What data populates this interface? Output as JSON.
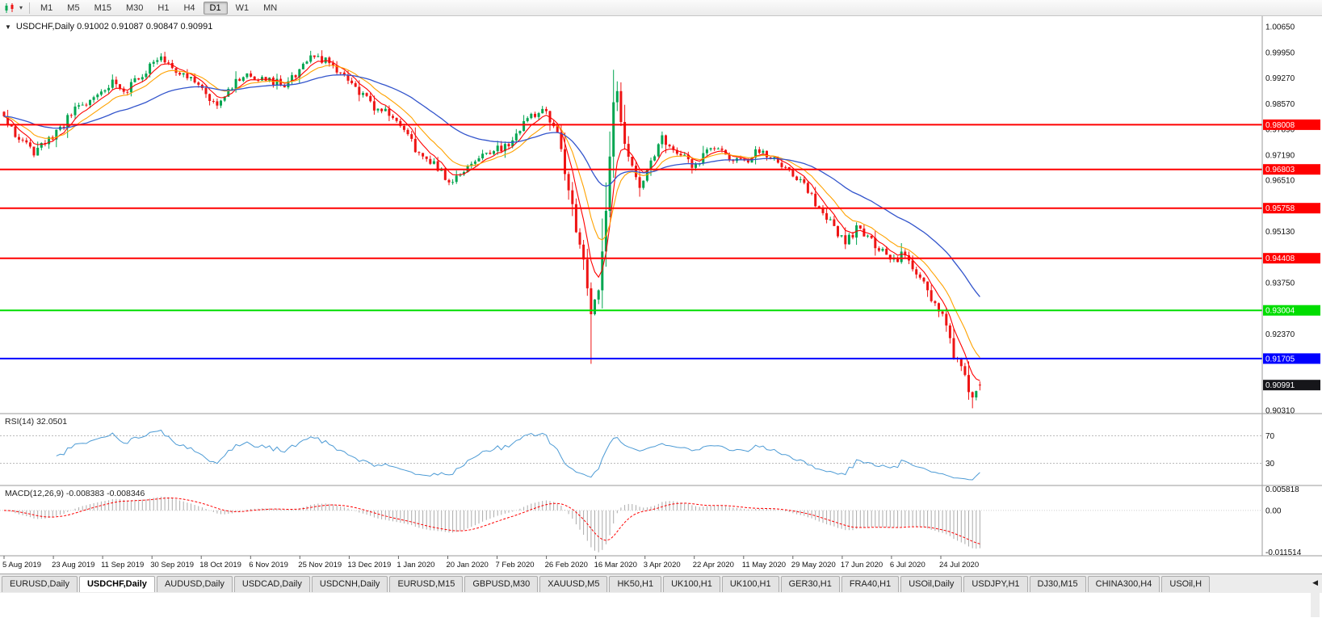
{
  "toolbar": {
    "timeframes": [
      "M1",
      "M5",
      "M15",
      "M30",
      "H1",
      "H4",
      "D1",
      "W1",
      "MN"
    ],
    "active_timeframe": "D1"
  },
  "chart": {
    "title": "USDCHF,Daily 0.91002 0.91087 0.90847 0.90991",
    "symbol": "USDCHF,Daily",
    "collapse_icon": "▼"
  },
  "chart_data": {
    "type": "candlestick",
    "title": "USDCHF,Daily",
    "ohlc": {
      "open": "0.91002",
      "high": "0.91087",
      "low": "0.90847",
      "close": "0.90991"
    },
    "colors": {
      "bull": "#00A550",
      "bear": "#EE1414"
    },
    "price_axis_range": {
      "max": 1.0065,
      "min": 0.9031
    },
    "price_axis_labels": [
      "1.00650",
      "0.99950",
      "0.99270",
      "0.98570",
      "0.97890",
      "0.97190",
      "0.96510",
      "0.95810",
      "0.95130",
      "0.94430",
      "0.93750",
      "0.93050",
      "0.92370",
      "0.91670",
      "0.90990",
      "0.90310"
    ],
    "horizontal_lines": [
      {
        "price": 0.98008,
        "label": "0.98008",
        "color": "#FF0000"
      },
      {
        "price": 0.96803,
        "label": "0.96803",
        "color": "#FF0000"
      },
      {
        "price": 0.95758,
        "label": "0.95758",
        "color": "#FF0000"
      },
      {
        "price": 0.94408,
        "label": "0.94408",
        "color": "#FF0000"
      },
      {
        "price": 0.93004,
        "label": "0.93004",
        "color": "#00DD00"
      },
      {
        "price": 0.91705,
        "label": "0.91705",
        "color": "#0000FF"
      }
    ],
    "current_price": {
      "price": 0.90991,
      "label": "0.90991",
      "badge_color": "#16161a"
    },
    "date_labels": [
      "5 Aug 2019",
      "23 Aug 2019",
      "11 Sep 2019",
      "30 Sep 2019",
      "18 Oct 2019",
      "6 Nov 2019",
      "25 Nov 2019",
      "13 Dec 2019",
      "1 Jan 2020",
      "20 Jan 2020",
      "7 Feb 2020",
      "26 Feb 2020",
      "16 Mar 2020",
      "3 Apr 2020",
      "22 Apr 2020",
      "11 May 2020",
      "29 May 2020",
      "17 Jun 2020",
      "6 Jul 2020",
      "24 Jul 2020"
    ],
    "candles": {
      "count": 262,
      "close_anchors": [
        [
          0,
          0.982
        ],
        [
          3,
          0.9772
        ],
        [
          8,
          0.9728
        ],
        [
          12,
          0.976
        ],
        [
          15,
          0.9792
        ],
        [
          19,
          0.984
        ],
        [
          24,
          0.9872
        ],
        [
          29,
          0.9916
        ],
        [
          33,
          0.9896
        ],
        [
          38,
          0.995
        ],
        [
          42,
          0.999
        ],
        [
          45,
          0.9958
        ],
        [
          49,
          0.993
        ],
        [
          53,
          0.989
        ],
        [
          57,
          0.9862
        ],
        [
          60,
          0.99
        ],
        [
          65,
          0.9936
        ],
        [
          70,
          0.9928
        ],
        [
          75,
          0.9906
        ],
        [
          79,
          0.9942
        ],
        [
          83,
          0.9988
        ],
        [
          87,
          0.9964
        ],
        [
          92,
          0.992
        ],
        [
          98,
          0.9856
        ],
        [
          103,
          0.983
        ],
        [
          107,
          0.9788
        ],
        [
          111,
          0.972
        ],
        [
          116,
          0.9688
        ],
        [
          119,
          0.9646
        ],
        [
          123,
          0.9682
        ],
        [
          129,
          0.9726
        ],
        [
          135,
          0.9742
        ],
        [
          140,
          0.9818
        ],
        [
          144,
          0.9846
        ],
        [
          148,
          0.9776
        ],
        [
          151,
          0.963
        ],
        [
          153,
          0.952
        ],
        [
          155,
          0.944
        ],
        [
          157,
          0.929
        ],
        [
          159,
          0.935
        ],
        [
          161,
          0.956
        ],
        [
          163,
          0.986
        ],
        [
          164,
          0.9882
        ],
        [
          166,
          0.9752
        ],
        [
          170,
          0.963
        ],
        [
          172,
          0.968
        ],
        [
          176,
          0.9766
        ],
        [
          180,
          0.973
        ],
        [
          185,
          0.9686
        ],
        [
          189,
          0.974
        ],
        [
          193,
          0.9718
        ],
        [
          198,
          0.97
        ],
        [
          202,
          0.973
        ],
        [
          206,
          0.9712
        ],
        [
          212,
          0.966
        ],
        [
          216,
          0.9606
        ],
        [
          219,
          0.9566
        ],
        [
          222,
          0.9526
        ],
        [
          225,
          0.9482
        ],
        [
          228,
          0.952
        ],
        [
          231,
          0.95
        ],
        [
          234,
          0.9468
        ],
        [
          238,
          0.9432
        ],
        [
          241,
          0.9455
        ],
        [
          244,
          0.9402
        ],
        [
          247,
          0.9352
        ],
        [
          251,
          0.9282
        ],
        [
          254,
          0.918
        ],
        [
          257,
          0.912
        ],
        [
          259,
          0.9058
        ],
        [
          261,
          0.90991
        ]
      ],
      "wick_extensions": [
        [
          157,
          -0.0105
        ],
        [
          164,
          0.0025
        ],
        [
          259,
          -0.0022
        ]
      ]
    },
    "moving_averages": [
      {
        "type": "ema",
        "period": 6,
        "color": "#FF0000",
        "width": 1.1
      },
      {
        "type": "ema",
        "period": 13,
        "color": "#FFA200",
        "width": 1.1
      },
      {
        "type": "ema",
        "period": 40,
        "color": "#3355CC",
        "width": 1.3
      }
    ],
    "rsi": {
      "label": "RSI(14) 32.0501",
      "period": 14,
      "value": 32.0501,
      "levels": [
        "70",
        "30"
      ],
      "color": "#4D9BD5"
    },
    "macd": {
      "label": "MACD(12,26,9) -0.008383 -0.008346",
      "fast": 12,
      "slow": 26,
      "signal": 9,
      "values": [
        -0.008383,
        -0.008346
      ],
      "axis_labels": [
        "0.005818",
        "0.00",
        "-0.011514"
      ],
      "axis_max": 0.005818,
      "axis_min": -0.011514,
      "histogram_color": "#ABABAB",
      "signal_color": "#FF0000"
    }
  },
  "tabs": {
    "items": [
      "EURUSD,Daily",
      "USDCHF,Daily",
      "AUDUSD,Daily",
      "USDCAD,Daily",
      "USDCNH,Daily",
      "EURUSD,M15",
      "GBPUSD,M30",
      "XAUUSD,M5",
      "HK50,H1",
      "UK100,H1",
      "UK100,H1",
      "GER30,H1",
      "FRA40,H1",
      "USOil,Daily",
      "USDJPY,H1",
      "DJ30,M15",
      "CHINA300,H4",
      "USOil,H"
    ],
    "active_index": 1,
    "scroll_icon": "◀"
  }
}
